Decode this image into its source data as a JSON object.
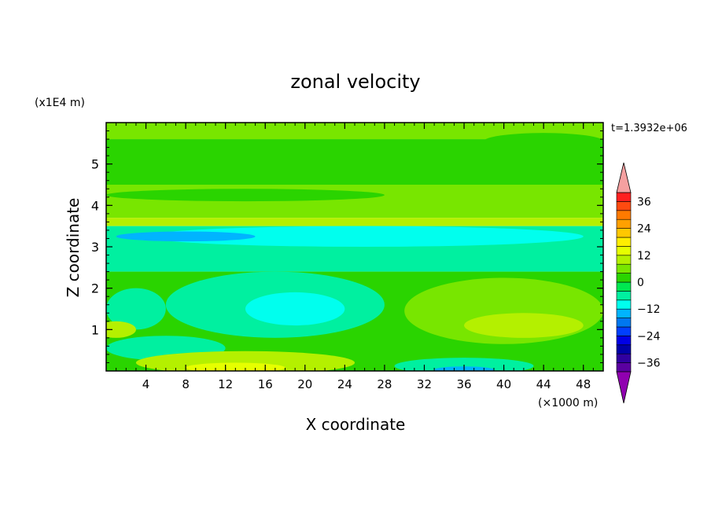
{
  "chart_data": {
    "type": "contour",
    "title": "zonal velocity",
    "xlabel": "X coordinate",
    "ylabel": "Z coordinate",
    "x_unit": "(×1000 m)",
    "y_unit": "(x1E4 m)",
    "time_label": "t=1.3932e+06",
    "xlim": [
      0,
      50
    ],
    "ylim": [
      0,
      6
    ],
    "x_ticks": [
      4,
      8,
      12,
      16,
      20,
      24,
      28,
      32,
      36,
      40,
      44,
      48
    ],
    "x_tick_labels": [
      "4",
      "8",
      "12",
      "16",
      "20",
      "24",
      "28",
      "32",
      "36",
      "40",
      "44",
      "48"
    ],
    "y_ticks": [
      1,
      2,
      3,
      4,
      5
    ],
    "y_tick_labels": [
      "1",
      "2",
      "3",
      "4",
      "5"
    ],
    "colorbar": {
      "levels": [
        -40,
        -36,
        -32,
        -28,
        -24,
        -20,
        -16,
        -12,
        -8,
        -4,
        0,
        4,
        8,
        12,
        16,
        20,
        24,
        28,
        32,
        36,
        40
      ],
      "labeled_levels": [
        36,
        24,
        12,
        0,
        -12,
        -24,
        -36
      ],
      "labels": [
        "36",
        "24",
        "12",
        "0",
        "−12",
        "−24",
        "−36"
      ],
      "colors_high_to_low": [
        "#ff2020",
        "#ff4a10",
        "#ff7a00",
        "#ffa000",
        "#ffc800",
        "#ffee00",
        "#e6ff00",
        "#b4f000",
        "#78e600",
        "#2ad400",
        "#00e850",
        "#00f0a0",
        "#00ffee",
        "#00b4ff",
        "#0078f0",
        "#0040ff",
        "#0000e6",
        "#0000a8",
        "#3000a0",
        "#5a00a0"
      ],
      "over_color": "#f5a0a0",
      "under_color": "#9000b0"
    },
    "bands": [
      {
        "z0": 5.6,
        "z1": 6.0,
        "value": 6
      },
      {
        "z0": 4.5,
        "z1": 5.6,
        "value": 2
      },
      {
        "z0": 3.7,
        "z1": 4.5,
        "value": 6
      },
      {
        "z0": 3.5,
        "z1": 3.7,
        "value": 10
      },
      {
        "z0": 2.4,
        "z1": 3.5,
        "value": -6
      },
      {
        "z0": 0.0,
        "z1": 2.4,
        "value": 2
      }
    ],
    "features": [
      {
        "x": 26,
        "z": 3.25,
        "rx": 22,
        "rz": 0.25,
        "value": -10
      },
      {
        "x": 8,
        "z": 3.25,
        "rx": 7,
        "rz": 0.12,
        "value": -14
      },
      {
        "x": 14,
        "z": 4.25,
        "rx": 14,
        "rz": 0.15,
        "value": 2
      },
      {
        "x": 44,
        "z": 5.55,
        "rx": 6,
        "rz": 0.2,
        "value": 2
      },
      {
        "x": 17,
        "z": 1.6,
        "rx": 11,
        "rz": 0.8,
        "value": -7
      },
      {
        "x": 19,
        "z": 1.5,
        "rx": 5,
        "rz": 0.4,
        "value": -11
      },
      {
        "x": 3,
        "z": 1.5,
        "rx": 3,
        "rz": 0.5,
        "value": -5
      },
      {
        "x": 40,
        "z": 1.45,
        "rx": 10,
        "rz": 0.8,
        "value": 6
      },
      {
        "x": 42,
        "z": 1.1,
        "rx": 6,
        "rz": 0.3,
        "value": 10
      },
      {
        "x": 1,
        "z": 1.0,
        "rx": 2,
        "rz": 0.2,
        "value": 8
      },
      {
        "x": 6,
        "z": 0.55,
        "rx": 6,
        "rz": 0.3,
        "value": -5
      },
      {
        "x": 14,
        "z": 0.2,
        "rx": 11,
        "rz": 0.28,
        "value": 8
      },
      {
        "x": 13,
        "z": 0.08,
        "rx": 5,
        "rz": 0.12,
        "value": 13
      },
      {
        "x": 36,
        "z": 0.12,
        "rx": 7,
        "rz": 0.2,
        "value": -7
      },
      {
        "x": 36,
        "z": 0.03,
        "rx": 3,
        "rz": 0.08,
        "value": -13
      }
    ]
  }
}
